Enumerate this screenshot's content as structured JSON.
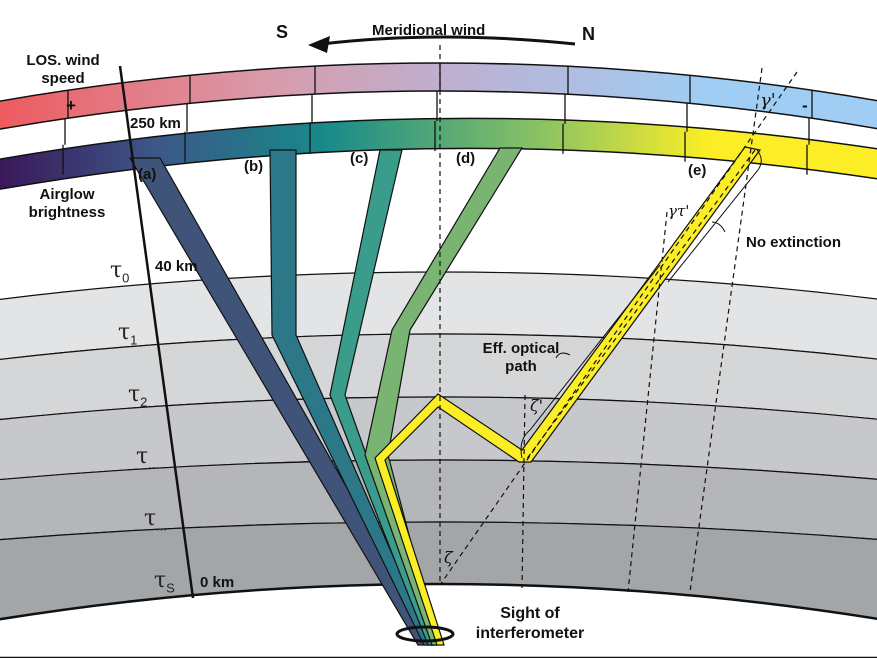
{
  "wind": {
    "title": "Meridional wind",
    "south": "S",
    "north": "N"
  },
  "los_band": {
    "label": "LOS. wind speed",
    "plus": "+",
    "minus": "-",
    "colors": [
      "#ee5a5e",
      "#d99aaa",
      "#b9b4d6",
      "#9fcdf3"
    ]
  },
  "airglow_band": {
    "label": "Airglow brightness",
    "colors": [
      "#3a1657",
      "#3c5788",
      "#178a8a",
      "#8ec462",
      "#fbee26"
    ]
  },
  "altitudes": {
    "top": "250 km",
    "mid": "40 km",
    "ground": "0 km"
  },
  "layers": [
    {
      "symbol": "τ",
      "sub": "0"
    },
    {
      "symbol": "τ",
      "sub": "1"
    },
    {
      "symbol": "τ",
      "sub": "2"
    },
    {
      "symbol": "τ",
      "sub": "..."
    },
    {
      "symbol": "τ",
      "sub": "..."
    },
    {
      "symbol": "τ",
      "sub": "S"
    }
  ],
  "beams": [
    {
      "label": "(a)",
      "color": "#3f5478"
    },
    {
      "label": "(b)",
      "color": "#2d7888"
    },
    {
      "label": "(c)",
      "color": "#3a9c8a"
    },
    {
      "label": "(d)",
      "color": "#7ab472"
    },
    {
      "label": "(e)",
      "color": "#fbee26"
    }
  ],
  "annotations": {
    "no_extinction": "No extinction",
    "eff_optical_path": "Eff. optical path",
    "sight": "Sight of interferometer",
    "gamma_prime": "γ'",
    "gamma_tau_prime": "γτ'",
    "zeta": "ζ",
    "zeta_prime": "ζ'"
  }
}
